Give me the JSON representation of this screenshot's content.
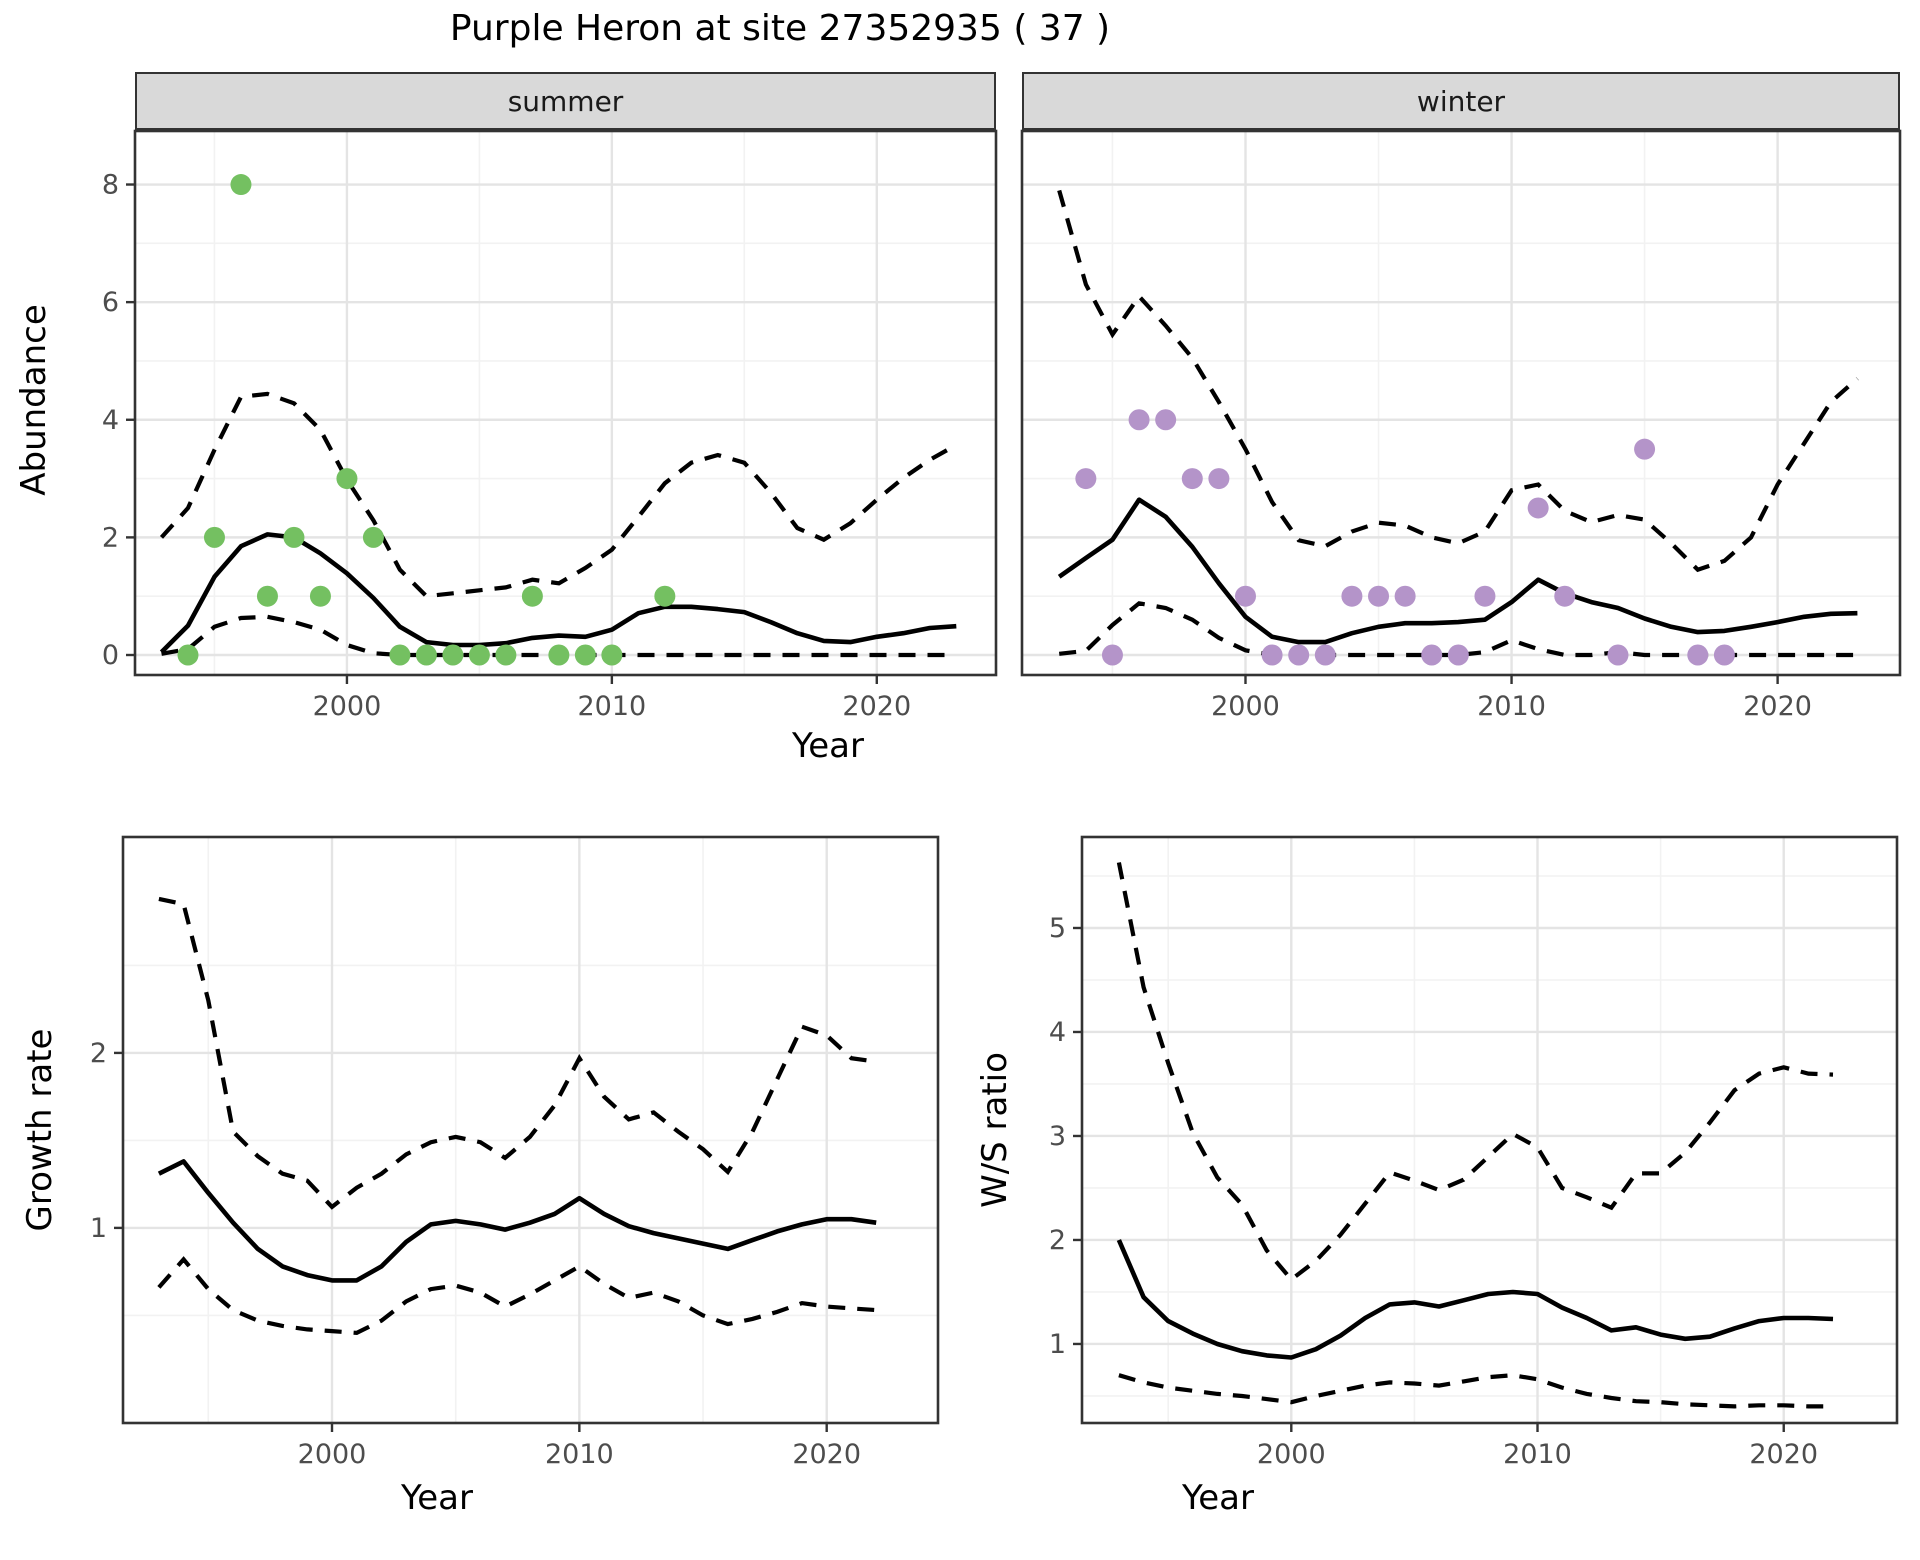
{
  "title": "Purple Heron at site 27352935 ( 37 )",
  "axes": {
    "abundance_ylabel": "Abundance",
    "top_xlabel": "Year",
    "growth_ylabel": "Growth rate",
    "growth_xlabel": "Year",
    "ws_ylabel": "W/S ratio",
    "ws_xlabel": "Year"
  },
  "facets": {
    "summer_label": "summer",
    "winter_label": "winter"
  },
  "colors": {
    "summer_point": "#74C061",
    "winter_point": "#B494C9",
    "line": "#000000",
    "strip_bg": "#D9D9D9",
    "panel_border": "#333333",
    "grid_major": "#E4E4E4",
    "grid_minor": "#F2F2F2",
    "tick_label": "#4D4D4D"
  },
  "chart_data": [
    {
      "id": "summer",
      "type": "scatter",
      "facet_label": "summer",
      "ylabel": "Abundance",
      "xlabel": "Year",
      "xlim": [
        1992.0,
        2024.5
      ],
      "ylim": [
        -0.34,
        8.91
      ],
      "x_major": [
        {
          "v": 2000,
          "label": "2000"
        },
        {
          "v": 2010,
          "label": "2010"
        },
        {
          "v": 2020,
          "label": "2020"
        }
      ],
      "x_minor": [
        1995,
        2005,
        2015
      ],
      "y_major": [
        {
          "v": 0,
          "label": "0"
        },
        {
          "v": 2,
          "label": "2"
        },
        {
          "v": 4,
          "label": "4"
        },
        {
          "v": 6,
          "label": "6"
        },
        {
          "v": 8,
          "label": "8"
        }
      ],
      "y_minor": [
        1,
        3,
        5,
        7
      ],
      "show_y_labels": true,
      "point_color": "#74C061",
      "points": [
        [
          1994,
          0
        ],
        [
          1995,
          2
        ],
        [
          1996,
          8
        ],
        [
          1997,
          1
        ],
        [
          1998,
          2
        ],
        [
          1999,
          1
        ],
        [
          2000,
          3
        ],
        [
          2001,
          2
        ],
        [
          2002,
          0
        ],
        [
          2003,
          0
        ],
        [
          2004,
          0
        ],
        [
          2005,
          0
        ],
        [
          2006,
          0
        ],
        [
          2007,
          1
        ],
        [
          2008,
          0
        ],
        [
          2009,
          0
        ],
        [
          2010,
          0
        ],
        [
          2012,
          1
        ]
      ],
      "years": [
        1993,
        1994,
        1995,
        1996,
        1997,
        1998,
        1999,
        2000,
        2001,
        2002,
        2003,
        2004,
        2005,
        2006,
        2007,
        2008,
        2009,
        2010,
        2011,
        2012,
        2013,
        2014,
        2015,
        2016,
        2017,
        2018,
        2019,
        2020,
        2021,
        2022,
        2023
      ],
      "mean": [
        0.05,
        0.5,
        1.33,
        1.85,
        2.05,
        2.0,
        1.73,
        1.39,
        0.97,
        0.48,
        0.22,
        0.17,
        0.17,
        0.2,
        0.29,
        0.33,
        0.31,
        0.43,
        0.71,
        0.82,
        0.82,
        0.78,
        0.73,
        0.56,
        0.37,
        0.24,
        0.22,
        0.31,
        0.37,
        0.46,
        0.49
      ],
      "upper": [
        2.0,
        2.5,
        3.49,
        4.39,
        4.44,
        4.28,
        3.83,
        2.98,
        2.29,
        1.45,
        1.0,
        1.05,
        1.1,
        1.15,
        1.28,
        1.22,
        1.48,
        1.79,
        2.35,
        2.92,
        3.27,
        3.4,
        3.27,
        2.76,
        2.16,
        1.96,
        2.24,
        2.64,
        3.01,
        3.32,
        3.57
      ],
      "lower": [
        0.02,
        0.1,
        0.48,
        0.63,
        0.65,
        0.56,
        0.43,
        0.17,
        0.03,
        0,
        0,
        0,
        0,
        0,
        0,
        0,
        0,
        0,
        0,
        0,
        0,
        0,
        0,
        0,
        0,
        0,
        0,
        0,
        0,
        0,
        0
      ]
    },
    {
      "id": "winter",
      "type": "scatter",
      "facet_label": "winter",
      "ylabel": "Abundance",
      "xlabel": "Year",
      "xlim": [
        1991.6,
        2024.6
      ],
      "ylim": [
        -0.34,
        8.91
      ],
      "x_major": [
        {
          "v": 2000,
          "label": "2000"
        },
        {
          "v": 2010,
          "label": "2010"
        },
        {
          "v": 2020,
          "label": "2020"
        }
      ],
      "x_minor": [
        1995,
        2005,
        2015
      ],
      "y_major": [
        {
          "v": 0,
          "label": "0"
        },
        {
          "v": 2,
          "label": "2"
        },
        {
          "v": 4,
          "label": "4"
        },
        {
          "v": 6,
          "label": "6"
        },
        {
          "v": 8,
          "label": "8"
        }
      ],
      "y_minor": [
        1,
        3,
        5,
        7
      ],
      "show_y_labels": false,
      "point_color": "#B494C9",
      "points": [
        [
          1994,
          3
        ],
        [
          1995,
          0
        ],
        [
          1996,
          4
        ],
        [
          1997,
          4
        ],
        [
          1998,
          3
        ],
        [
          1999,
          3
        ],
        [
          2000,
          1
        ],
        [
          2001,
          0
        ],
        [
          2002,
          0
        ],
        [
          2003,
          0
        ],
        [
          2004,
          1
        ],
        [
          2005,
          1
        ],
        [
          2006,
          1
        ],
        [
          2007,
          0
        ],
        [
          2008,
          0
        ],
        [
          2009,
          1
        ],
        [
          2011,
          2.5
        ],
        [
          2012,
          1
        ],
        [
          2014,
          0
        ],
        [
          2015,
          3.5
        ],
        [
          2017,
          0
        ],
        [
          2018,
          0
        ]
      ],
      "years": [
        1993,
        1994,
        1995,
        1996,
        1997,
        1998,
        1999,
        2000,
        2001,
        2002,
        2003,
        2004,
        2005,
        2006,
        2007,
        2008,
        2009,
        2010,
        2011,
        2012,
        2013,
        2014,
        2015,
        2016,
        2017,
        2018,
        2019,
        2020,
        2021,
        2022,
        2023
      ],
      "mean": [
        1.33,
        1.65,
        1.96,
        2.64,
        2.35,
        1.84,
        1.22,
        0.65,
        0.31,
        0.22,
        0.22,
        0.37,
        0.48,
        0.54,
        0.54,
        0.56,
        0.6,
        0.9,
        1.28,
        1.05,
        0.9,
        0.8,
        0.62,
        0.48,
        0.39,
        0.41,
        0.48,
        0.56,
        0.65,
        0.7,
        0.71
      ],
      "upper": [
        7.9,
        6.3,
        5.45,
        6.1,
        5.6,
        5.05,
        4.3,
        3.5,
        2.6,
        1.95,
        1.85,
        2.1,
        2.25,
        2.2,
        2.0,
        1.9,
        2.1,
        2.8,
        2.9,
        2.45,
        2.26,
        2.38,
        2.3,
        1.9,
        1.45,
        1.6,
        2.0,
        2.9,
        3.6,
        4.3,
        4.7
      ],
      "lower": [
        0.02,
        0.07,
        0.51,
        0.88,
        0.8,
        0.6,
        0.29,
        0.08,
        0,
        0,
        0,
        0,
        0,
        0,
        0,
        0,
        0.05,
        0.25,
        0.1,
        0,
        0,
        0.05,
        0,
        0,
        0,
        0,
        0,
        0,
        0,
        0,
        0
      ]
    },
    {
      "id": "growth",
      "type": "line",
      "facet_label": "",
      "ylabel": "Growth rate",
      "xlabel": "Year",
      "xlim": [
        1991.55,
        2024.5
      ],
      "ylim": [
        -0.115,
        3.234
      ],
      "x_major": [
        {
          "v": 2000,
          "label": "2000"
        },
        {
          "v": 2010,
          "label": "2010"
        },
        {
          "v": 2020,
          "label": "2020"
        }
      ],
      "x_minor": [
        1995,
        2005,
        2015
      ],
      "y_major": [
        {
          "v": 1,
          "label": "1"
        },
        {
          "v": 2,
          "label": "2"
        }
      ],
      "y_minor": [
        0.5,
        1.5,
        2.5
      ],
      "show_y_labels": true,
      "point_color": "#000000",
      "points": [],
      "years": [
        1993,
        1994,
        1995,
        1996,
        1997,
        1998,
        1999,
        2000,
        2001,
        2002,
        2003,
        2004,
        2005,
        2006,
        2007,
        2008,
        2009,
        2010,
        2011,
        2012,
        2013,
        2014,
        2015,
        2016,
        2017,
        2018,
        2019,
        2020,
        2021,
        2022
      ],
      "mean": [
        1.31,
        1.38,
        1.2,
        1.03,
        0.88,
        0.78,
        0.73,
        0.7,
        0.7,
        0.78,
        0.92,
        1.02,
        1.04,
        1.02,
        0.99,
        1.03,
        1.08,
        1.17,
        1.08,
        1.01,
        0.97,
        0.94,
        0.91,
        0.88,
        0.93,
        0.98,
        1.02,
        1.05,
        1.05,
        1.03
      ],
      "upper": [
        2.88,
        2.85,
        2.3,
        1.55,
        1.41,
        1.31,
        1.27,
        1.12,
        1.23,
        1.31,
        1.42,
        1.49,
        1.52,
        1.49,
        1.4,
        1.52,
        1.7,
        1.97,
        1.75,
        1.62,
        1.66,
        1.55,
        1.45,
        1.32,
        1.55,
        1.85,
        2.15,
        2.1,
        1.97,
        1.95
      ],
      "lower": [
        0.66,
        0.82,
        0.65,
        0.53,
        0.47,
        0.44,
        0.42,
        0.41,
        0.4,
        0.47,
        0.58,
        0.65,
        0.67,
        0.63,
        0.55,
        0.62,
        0.7,
        0.78,
        0.68,
        0.6,
        0.63,
        0.58,
        0.5,
        0.45,
        0.48,
        0.52,
        0.57,
        0.55,
        0.54,
        0.53
      ]
    },
    {
      "id": "ws",
      "type": "line",
      "facet_label": "",
      "ylabel": "W/S ratio",
      "xlabel": "Year",
      "xlim": [
        1991.5,
        2024.6
      ],
      "ylim": [
        0.24,
        5.875
      ],
      "x_major": [
        {
          "v": 2000,
          "label": "2000"
        },
        {
          "v": 2010,
          "label": "2010"
        },
        {
          "v": 2020,
          "label": "2020"
        }
      ],
      "x_minor": [
        1995,
        2005,
        2015
      ],
      "y_major": [
        {
          "v": 1,
          "label": "1"
        },
        {
          "v": 2,
          "label": "2"
        },
        {
          "v": 3,
          "label": "3"
        },
        {
          "v": 4,
          "label": "4"
        },
        {
          "v": 5,
          "label": "5"
        }
      ],
      "y_minor": [
        0.5,
        1.5,
        2.5,
        3.5,
        4.5,
        5.5
      ],
      "show_y_labels": true,
      "point_color": "#000000",
      "points": [],
      "years": [
        1993,
        1994,
        1995,
        1996,
        1997,
        1998,
        1999,
        2000,
        2001,
        2002,
        2003,
        2004,
        2005,
        2006,
        2007,
        2008,
        2009,
        2010,
        2011,
        2012,
        2013,
        2014,
        2015,
        2016,
        2017,
        2018,
        2019,
        2020,
        2021,
        2022
      ],
      "mean": [
        2.0,
        1.45,
        1.22,
        1.1,
        1.0,
        0.93,
        0.89,
        0.87,
        0.95,
        1.08,
        1.25,
        1.38,
        1.4,
        1.36,
        1.42,
        1.48,
        1.5,
        1.48,
        1.35,
        1.25,
        1.13,
        1.16,
        1.09,
        1.05,
        1.07,
        1.15,
        1.22,
        1.25,
        1.25,
        1.24
      ],
      "upper": [
        5.63,
        4.43,
        3.7,
        3.03,
        2.6,
        2.34,
        1.9,
        1.62,
        1.8,
        2.05,
        2.35,
        2.65,
        2.57,
        2.48,
        2.58,
        2.8,
        3.02,
        2.89,
        2.5,
        2.41,
        2.31,
        2.64,
        2.64,
        2.84,
        3.13,
        3.44,
        3.6,
        3.66,
        3.6,
        3.59
      ],
      "lower": [
        0.7,
        0.63,
        0.58,
        0.55,
        0.52,
        0.5,
        0.47,
        0.44,
        0.5,
        0.55,
        0.6,
        0.63,
        0.62,
        0.6,
        0.64,
        0.68,
        0.7,
        0.66,
        0.58,
        0.52,
        0.48,
        0.45,
        0.44,
        0.42,
        0.41,
        0.4,
        0.41,
        0.41,
        0.4,
        0.4
      ]
    }
  ]
}
